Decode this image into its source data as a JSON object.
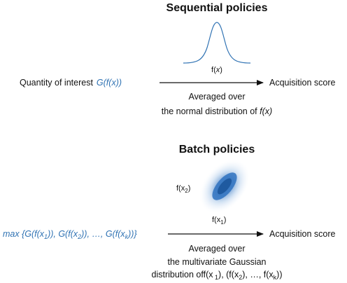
{
  "colors": {
    "accent": "#2f72b3",
    "text": "#111111"
  },
  "sequential": {
    "title": "Sequential policies",
    "curve_label_prefix": "f(",
    "curve_label_var": "x",
    "curve_label_suffix": ")",
    "quantity_label": "Quantity of interest",
    "quantity_expr": "G(f(x))",
    "result": "Acquisition score",
    "note_line1": "Averaged over",
    "note_line2_prefix": "the normal distribution of ",
    "note_line2_expr": "f(x)"
  },
  "batch": {
    "title": "Batch policies",
    "axis_y_label": "f(x",
    "axis_y_sub": "2",
    "axis_x_label": "f(x",
    "axis_x_sub": "1",
    "close_paren": ")",
    "expr_open": "max {G(f(x",
    "expr_sub1": "1",
    "expr_mid1": ")), G(f(x",
    "expr_sub2": "2",
    "expr_mid2": ")), …, G(f(x",
    "expr_subk": "k",
    "expr_close": "))}",
    "result": "Acquisition score",
    "note_line1": "Averaged over",
    "note_line2": "the multivariate Gaussian",
    "note_line3_a": "distribution off(x",
    "note_line3_sub1": " 1",
    "note_line3_b": "), (f(x",
    "note_line3_sub2": "2",
    "note_line3_c": "), …, f(x",
    "note_line3_subk": "k",
    "note_line3_d": "))"
  }
}
